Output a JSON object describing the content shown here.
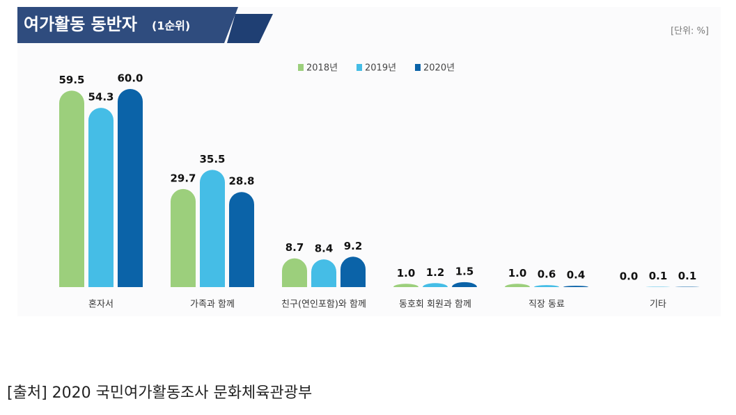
{
  "chart_data": {
    "type": "bar",
    "title": "여가활동 동반자",
    "subtitle": "(1순위)",
    "unit": "[단위: %]",
    "categories": [
      "혼자서",
      "가족과 함께",
      "친구(연인포함)와 함께",
      "동호회 회원과 함께",
      "직장 동료",
      "기타"
    ],
    "series": [
      {
        "name": "2018년",
        "color": "#9ccf7c",
        "values": [
          59.5,
          29.7,
          8.7,
          1.0,
          1.0,
          0.0
        ],
        "value_labels": [
          "59.5",
          "29.7",
          "8.7",
          "1.0",
          "1.0",
          "0.0"
        ]
      },
      {
        "name": "2019년",
        "color": "#45bde6",
        "values": [
          54.3,
          35.5,
          8.4,
          1.2,
          0.6,
          0.1
        ],
        "value_labels": [
          "54.3",
          "35.5",
          "8.4",
          "1.2",
          "0.6",
          "0.1"
        ]
      },
      {
        "name": "2020년",
        "color": "#0b63a8",
        "values": [
          60.0,
          28.8,
          9.2,
          1.5,
          0.4,
          0.1
        ],
        "value_labels": [
          "60.0",
          "28.8",
          "9.2",
          "1.5",
          "0.4",
          "0.1"
        ]
      }
    ]
  },
  "source": "[출처] 2020 국민여가활동조사 문화체육관광부"
}
